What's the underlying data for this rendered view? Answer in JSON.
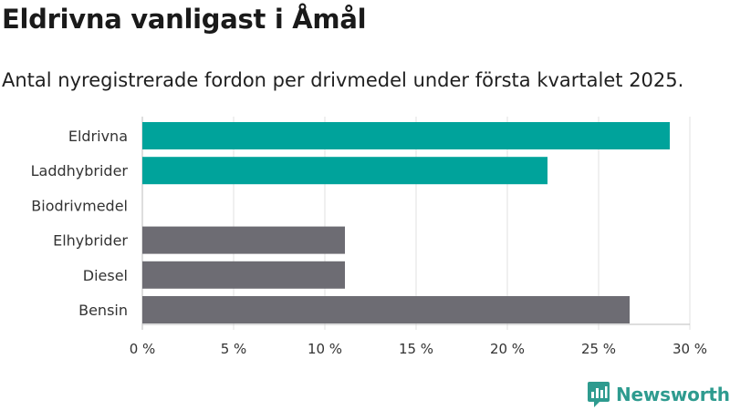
{
  "title": "Eldrivna vanligast i Åmål",
  "subtitle": "Antal nyregistrerade fordon per drivmedel under första kvartalet 2025.",
  "brand": {
    "name": "Newsworthy",
    "color": "#2e9b8f",
    "logo_icon": "newsworthy-logo-icon"
  },
  "colors": {
    "highlight": "#00a39b",
    "other": "#6d6c73",
    "grid": "#e0e0e0",
    "axis": "#bdbdbd"
  },
  "chart_data": {
    "type": "bar",
    "orientation": "horizontal",
    "categories": [
      "Eldrivna",
      "Laddhybrider",
      "Biodrivmedel",
      "Elhybrider",
      "Diesel",
      "Bensin"
    ],
    "values": [
      28.9,
      22.2,
      0,
      11.1,
      11.1,
      26.7
    ],
    "highlight": [
      true,
      true,
      true,
      false,
      false,
      false
    ],
    "xlim": [
      0,
      30
    ],
    "xticks": [
      0,
      5,
      10,
      15,
      20,
      25,
      30
    ],
    "xtick_labels": [
      "0 %",
      "5 %",
      "10 %",
      "15 %",
      "20 %",
      "25 %",
      "30 %"
    ],
    "grid": true
  }
}
